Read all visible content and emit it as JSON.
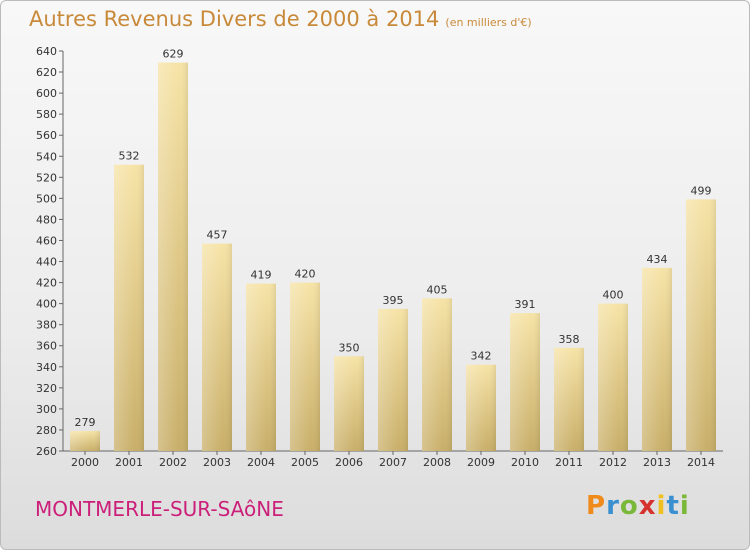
{
  "header": {
    "title": "Autres Revenus Divers de 2000 à 2014",
    "unit": "(en milliers d'€)"
  },
  "footer": {
    "town": "MONTMERLE-SUR-SAôNE",
    "logo_letters": [
      "P",
      "r",
      "o",
      "x",
      "i",
      "t",
      "i"
    ],
    "logo_colors": [
      "#f08a1a",
      "#3a8fd0",
      "#7ab83a",
      "#d6332e",
      "#f0c020",
      "#3a8fd0",
      "#7ab83a"
    ]
  },
  "colors": {
    "bar_light": "#f6e3a6",
    "bar_dark": "#c8ae68",
    "title": "#c88a3a",
    "town": "#cc1f7a"
  },
  "chart_data": {
    "type": "bar",
    "categories": [
      "2000",
      "2001",
      "2002",
      "2003",
      "2004",
      "2005",
      "2006",
      "2007",
      "2008",
      "2009",
      "2010",
      "2011",
      "2012",
      "2013",
      "2014"
    ],
    "values": [
      279,
      532,
      629,
      457,
      419,
      420,
      350,
      395,
      405,
      342,
      391,
      358,
      400,
      434,
      499
    ],
    "ylim": [
      260,
      640
    ],
    "yticks": [
      260,
      280,
      300,
      320,
      340,
      360,
      380,
      400,
      420,
      440,
      460,
      480,
      500,
      520,
      540,
      560,
      580,
      600,
      620,
      640
    ],
    "grid": false,
    "data_labels": true
  }
}
